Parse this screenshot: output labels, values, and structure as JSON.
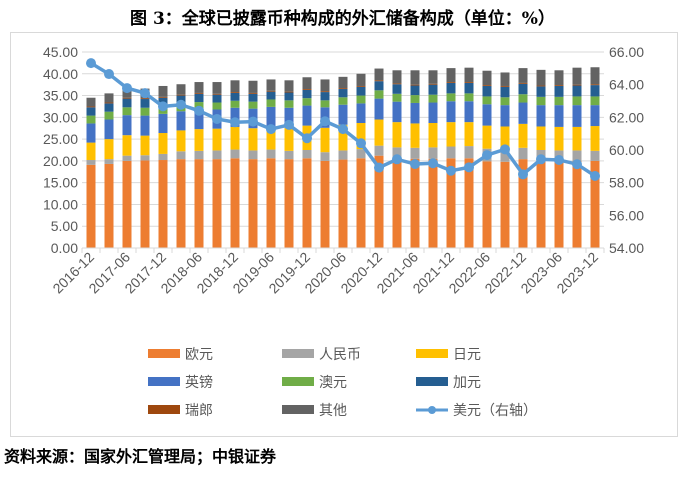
{
  "title": "图 3：全球已披露币种构成的外汇储备构成（单位：%）",
  "source": "资料来源：国家外汇管理局；中银证券",
  "chart_data": {
    "type": "bar",
    "stacked": true,
    "categories": [
      "2016-12",
      "2017-03",
      "2017-06",
      "2017-09",
      "2017-12",
      "2018-03",
      "2018-06",
      "2018-09",
      "2018-12",
      "2019-03",
      "2019-06",
      "2019-09",
      "2019-12",
      "2020-03",
      "2020-06",
      "2020-09",
      "2020-12",
      "2021-03",
      "2021-06",
      "2021-09",
      "2021-12",
      "2022-03",
      "2022-06",
      "2022-09",
      "2022-12",
      "2023-03",
      "2023-06",
      "2023-09",
      "2023-12"
    ],
    "tick_labels": [
      "2016-12",
      "2017-06",
      "2017-12",
      "2018-06",
      "2018-12",
      "2019-06",
      "2019-12",
      "2020-06",
      "2020-12",
      "2021-06",
      "2021-12",
      "2022-06",
      "2022-12",
      "2023-06",
      "2023-12"
    ],
    "y_left": {
      "ylim": [
        0,
        45
      ],
      "ticks": [
        "0.00",
        "5.00",
        "10.00",
        "15.00",
        "20.00",
        "25.00",
        "30.00",
        "35.00",
        "40.00",
        "45.00"
      ]
    },
    "y_right": {
      "ylim": [
        54,
        66
      ],
      "ticks": [
        "54.00",
        "56.00",
        "58.00",
        "60.00",
        "62.00",
        "64.00",
        "66.00"
      ]
    },
    "grid": true,
    "legend_placement": "bottom",
    "series": [
      {
        "name": "欧元",
        "color": "#ED7D31",
        "values": [
          19.1,
          19.3,
          20.0,
          20.1,
          20.2,
          20.4,
          20.4,
          20.4,
          20.6,
          20.4,
          20.6,
          20.4,
          20.6,
          20.0,
          20.3,
          20.6,
          21.2,
          20.6,
          20.5,
          20.5,
          20.6,
          20.6,
          19.9,
          19.8,
          20.4,
          19.9,
          19.9,
          20.0,
          20.0
        ]
      },
      {
        "name": "人民币",
        "color": "#A5A5A5",
        "values": [
          1.1,
          1.1,
          1.2,
          1.2,
          1.4,
          1.8,
          1.9,
          2.0,
          2.0,
          2.0,
          2.0,
          1.9,
          1.9,
          2.0,
          2.1,
          2.1,
          2.3,
          2.5,
          2.5,
          2.6,
          2.7,
          2.8,
          2.9,
          2.8,
          2.6,
          2.6,
          2.5,
          2.4,
          2.3
        ]
      },
      {
        "name": "日元",
        "color": "#FFC000",
        "values": [
          4.0,
          4.6,
          4.7,
          4.5,
          4.8,
          4.8,
          5.0,
          5.0,
          5.2,
          5.1,
          5.2,
          5.3,
          5.6,
          5.6,
          5.9,
          6.0,
          6.0,
          5.8,
          5.6,
          5.6,
          5.6,
          5.5,
          5.3,
          5.3,
          5.5,
          5.4,
          5.4,
          5.4,
          5.7
        ]
      },
      {
        "name": "英镑",
        "color": "#4472C4",
        "values": [
          4.4,
          4.5,
          4.6,
          4.6,
          4.4,
          4.4,
          4.5,
          4.4,
          4.4,
          4.5,
          4.6,
          4.6,
          4.6,
          4.7,
          4.6,
          4.5,
          4.8,
          4.7,
          4.7,
          4.7,
          4.8,
          4.8,
          4.9,
          4.9,
          4.9,
          4.9,
          5.0,
          5.0,
          4.8
        ]
      },
      {
        "name": "澳元",
        "color": "#70AD47",
        "values": [
          1.8,
          1.8,
          1.8,
          1.8,
          1.7,
          1.7,
          1.7,
          1.6,
          1.6,
          1.6,
          1.7,
          1.7,
          1.7,
          1.6,
          1.7,
          1.8,
          1.9,
          1.8,
          1.8,
          1.8,
          1.8,
          1.8,
          1.8,
          1.8,
          1.9,
          1.9,
          1.9,
          2.0,
          2.0
        ]
      },
      {
        "name": "加元",
        "color": "#255E91",
        "values": [
          1.9,
          1.9,
          2.0,
          2.0,
          2.0,
          1.9,
          1.9,
          1.8,
          1.8,
          1.8,
          1.8,
          1.8,
          1.9,
          1.9,
          1.9,
          2.0,
          2.1,
          2.2,
          2.2,
          2.3,
          2.4,
          2.4,
          2.4,
          2.4,
          2.4,
          2.4,
          2.5,
          2.5,
          2.6
        ]
      },
      {
        "name": "瑞郎",
        "color": "#9E480E",
        "values": [
          0.2,
          0.2,
          0.2,
          0.2,
          0.2,
          0.2,
          0.2,
          0.2,
          0.2,
          0.2,
          0.2,
          0.2,
          0.2,
          0.2,
          0.2,
          0.2,
          0.2,
          0.2,
          0.2,
          0.2,
          0.2,
          0.2,
          0.2,
          0.2,
          0.2,
          0.2,
          0.2,
          0.2,
          0.2
        ]
      },
      {
        "name": "其他",
        "color": "#636363",
        "values": [
          2.0,
          2.1,
          2.2,
          2.2,
          2.5,
          2.4,
          2.5,
          2.7,
          2.7,
          2.8,
          2.6,
          2.6,
          2.7,
          2.7,
          2.6,
          2.8,
          2.7,
          3.0,
          3.3,
          3.1,
          3.2,
          3.3,
          3.3,
          3.1,
          3.4,
          3.6,
          3.4,
          3.9,
          3.9
        ]
      }
    ],
    "line_series": {
      "name": "美元（右轴）",
      "axis": "right",
      "color": "#5B9BD5",
      "values": [
        65.32,
        64.65,
        63.79,
        63.48,
        62.67,
        62.77,
        62.4,
        61.9,
        61.7,
        61.74,
        61.28,
        61.54,
        60.72,
        61.76,
        61.28,
        60.41,
        58.92,
        59.43,
        59.14,
        59.19,
        58.73,
        58.94,
        59.69,
        60.04,
        58.51,
        59.43,
        59.39,
        59.13,
        58.41
      ]
    }
  }
}
